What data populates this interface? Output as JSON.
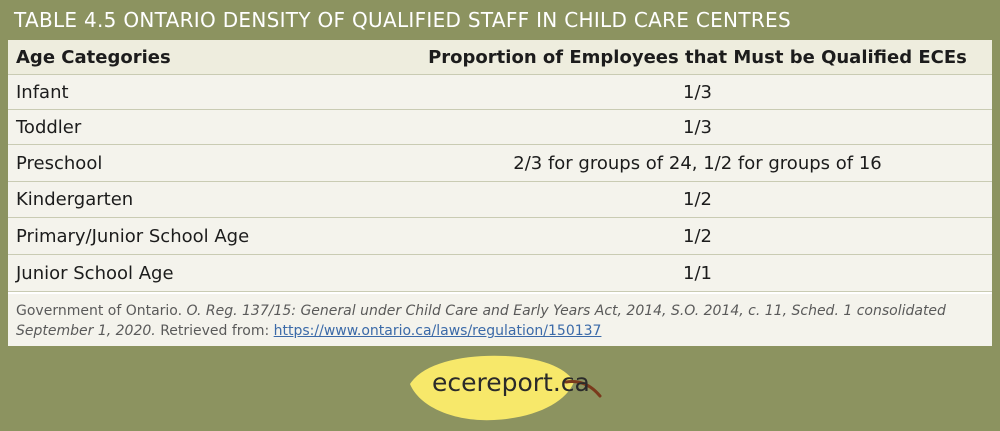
{
  "title": "TABLE 4.5 ONTARIO DENSITY OF QUALIFIED STAFF IN CHILD CARE CENTRES",
  "table": {
    "headers": [
      "Age Categories",
      "Proportion of Employees that Must be Qualified ECEs"
    ],
    "rows": [
      {
        "category": "Infant",
        "proportion": "1/3"
      },
      {
        "category": "Toddler",
        "proportion": "1/3"
      },
      {
        "category": "Preschool",
        "proportion": "2/3 for groups of 24, 1/2 for groups of 16"
      },
      {
        "category": "Kindergarten",
        "proportion": "1/2"
      },
      {
        "category": "Primary/Junior School Age",
        "proportion": "1/2"
      },
      {
        "category": "Junior School Age",
        "proportion": "1/1"
      }
    ]
  },
  "source": {
    "prefix": "Government of Ontario.",
    "italic": "O. Reg. 137/15: General under Child Care and Early Years Act, 2014, S.O. 2014, c. 11, Sched. 1 consolidated September 1, 2020.",
    "retrieved": "Retrieved from:",
    "link": "https://www.ontario.ca/laws/regulation/150137"
  },
  "brand": {
    "text": "ecereport.ca",
    "icon": "leaf-icon"
  },
  "colors": {
    "background": "#8c9360",
    "leaf": "#f7e86a",
    "leaf_stem": "#7a3a1c",
    "link": "#3b6aa8"
  }
}
